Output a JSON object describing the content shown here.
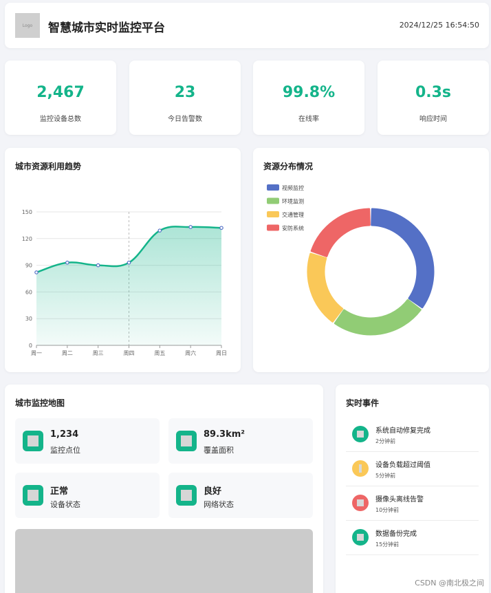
{
  "header": {
    "logo_text": "Logo",
    "title": "智慧城市实时监控平台",
    "datetime": "2024/12/25 16:54:50"
  },
  "stats": [
    {
      "value": "2,467",
      "label": "监控设备总数"
    },
    {
      "value": "23",
      "label": "今日告警数"
    },
    {
      "value": "99.8%",
      "label": "在线率"
    },
    {
      "value": "0.3s",
      "label": "响应时间"
    }
  ],
  "trend": {
    "title": "城市资源利用趋势"
  },
  "pie": {
    "title": "资源分布情况"
  },
  "chart_data": [
    {
      "type": "area",
      "title": "城市资源利用趋势",
      "categories": [
        "周一",
        "周二",
        "周三",
        "周四",
        "周五",
        "周六",
        "周日"
      ],
      "values": [
        82,
        93,
        90,
        93,
        129,
        133,
        132
      ],
      "ylim": [
        0,
        150
      ],
      "yticks": [
        0,
        30,
        60,
        90,
        120,
        150
      ],
      "grid": true,
      "color": "#14b48a"
    },
    {
      "type": "pie",
      "title": "资源分布情况",
      "labels": [
        "视频监控",
        "环境监测",
        "交通管理",
        "安防系统"
      ],
      "values": [
        35,
        25,
        20,
        20
      ],
      "colors": [
        "#5470c6",
        "#91cc75",
        "#fac858",
        "#ee6666"
      ],
      "legend": "top-left"
    }
  ],
  "map": {
    "title": "城市监控地图",
    "items": [
      {
        "value": "1,234",
        "label": "监控点位"
      },
      {
        "value": "89.3km²",
        "label": "覆盖面积"
      },
      {
        "value": "正常",
        "label": "设备状态"
      },
      {
        "value": "良好",
        "label": "网络状态"
      }
    ]
  },
  "events": {
    "title": "实时事件",
    "items": [
      {
        "text": "系统自动修复完成",
        "time": "2分钟前",
        "color": "#14b48a"
      },
      {
        "text": "设备负载超过阈值",
        "time": "5分钟前",
        "color": "#fac858"
      },
      {
        "text": "摄像头离线告警",
        "time": "10分钟前",
        "color": "#ee6666"
      },
      {
        "text": "数据备份完成",
        "time": "15分钟前",
        "color": "#14b48a"
      }
    ]
  },
  "watermark": "CSDN @南北极之间"
}
